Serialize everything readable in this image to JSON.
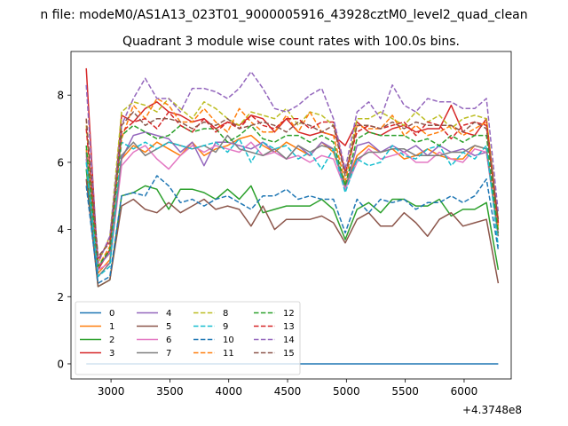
{
  "chart_data": {
    "type": "line",
    "suptitle": "n file: modeM0/AS1A13_023T01_9000005916_43928cztM0_level2_quad_clean",
    "title": "Quadrant 3 module wise count rates with 100.0s bins.",
    "xlabel": "",
    "ylabel": "",
    "x_offset_label": "+4.3748e8",
    "xlim": [
      2660,
      6400
    ],
    "ylim": [
      -0.45,
      9.3
    ],
    "xticks": [
      3000,
      3500,
      4000,
      4500,
      5000,
      5500,
      6000
    ],
    "xtick_labels": [
      "3000",
      "3500",
      "4000",
      "4500",
      "5000",
      "5500",
      "6000"
    ],
    "yticks": [
      0,
      2,
      4,
      6,
      8
    ],
    "ytick_labels": [
      "0",
      "2",
      "4",
      "6",
      "8"
    ],
    "grid": false,
    "legend_position": "lower-left",
    "legend_columns": 4,
    "x": [
      2790,
      2890,
      2990,
      3090,
      3190,
      3290,
      3390,
      3490,
      3590,
      3690,
      3790,
      3890,
      3990,
      4090,
      4190,
      4290,
      4390,
      4490,
      4590,
      4690,
      4790,
      4890,
      4990,
      5090,
      5190,
      5290,
      5390,
      5490,
      5590,
      5690,
      5790,
      5890,
      5990,
      6090,
      6190,
      6290
    ],
    "series": [
      {
        "name": "0",
        "color": "#1f77b4",
        "dash": "solid",
        "values": [
          0,
          0,
          0,
          0,
          0,
          0,
          0,
          0,
          0,
          0,
          0,
          0,
          0,
          0,
          0,
          0,
          0,
          0,
          0,
          0,
          0,
          0,
          0,
          0,
          0,
          0,
          0,
          0,
          0,
          0,
          0,
          0,
          0,
          0,
          0,
          0
        ]
      },
      {
        "name": "1",
        "color": "#ff7f0e",
        "dash": "solid",
        "values": [
          6.4,
          2.7,
          3.1,
          6.1,
          6.5,
          6.3,
          6.6,
          6.4,
          6.2,
          6.6,
          6.2,
          6.4,
          6.5,
          6.7,
          6.8,
          6.5,
          6.3,
          6.6,
          6.4,
          6.2,
          6.6,
          6.3,
          5.3,
          6.2,
          6.5,
          6.3,
          6.4,
          6.1,
          6.2,
          6.4,
          6.2,
          6.1,
          6.1,
          6.5,
          6.4,
          4.0
        ]
      },
      {
        "name": "2",
        "color": "#2ca02c",
        "dash": "solid",
        "values": [
          5.8,
          2.3,
          2.5,
          5.0,
          5.1,
          5.3,
          5.2,
          4.6,
          5.2,
          5.2,
          5.1,
          4.9,
          5.2,
          4.9,
          5.3,
          4.5,
          4.6,
          4.7,
          4.7,
          4.7,
          4.9,
          4.6,
          3.7,
          4.6,
          4.8,
          4.5,
          4.9,
          4.9,
          4.7,
          4.7,
          4.9,
          4.4,
          4.6,
          4.6,
          4.8,
          2.8
        ]
      },
      {
        "name": "3",
        "color": "#d62728",
        "dash": "solid",
        "values": [
          8.8,
          2.8,
          3.4,
          7.4,
          7.2,
          7.6,
          7.8,
          7.5,
          7.4,
          7.2,
          7.3,
          7.0,
          7.2,
          7.1,
          7.4,
          7.3,
          6.9,
          7.3,
          6.9,
          6.8,
          6.9,
          6.8,
          6.5,
          7.2,
          6.9,
          6.8,
          7.0,
          7.1,
          6.9,
          7.0,
          7.0,
          7.7,
          6.9,
          6.8,
          7.3,
          4.2
        ]
      },
      {
        "name": "4",
        "color": "#9467bd",
        "dash": "solid",
        "values": [
          6.1,
          2.9,
          3.3,
          6.1,
          6.8,
          6.9,
          6.8,
          6.7,
          6.3,
          6.6,
          5.9,
          6.6,
          6.6,
          6.5,
          6.4,
          6.6,
          6.3,
          6.1,
          6.5,
          6.2,
          6.6,
          6.4,
          5.2,
          6.5,
          6.6,
          6.3,
          6.5,
          6.3,
          6.5,
          6.2,
          6.5,
          6.3,
          6.4,
          6.2,
          6.3,
          3.9
        ]
      },
      {
        "name": "5",
        "color": "#8c564b",
        "dash": "solid",
        "values": [
          5.5,
          2.3,
          2.5,
          4.7,
          4.9,
          4.6,
          4.5,
          4.8,
          4.5,
          4.7,
          4.9,
          4.6,
          4.7,
          4.6,
          4.1,
          4.7,
          4.0,
          4.3,
          4.3,
          4.3,
          4.4,
          4.2,
          3.6,
          4.3,
          4.5,
          4.1,
          4.1,
          4.5,
          4.2,
          3.8,
          4.3,
          4.5,
          4.1,
          4.2,
          4.3,
          2.4
        ]
      },
      {
        "name": "6",
        "color": "#e377c2",
        "dash": "solid",
        "values": [
          6.2,
          2.8,
          3.0,
          5.9,
          6.3,
          6.5,
          6.1,
          5.8,
          6.2,
          6.5,
          6.3,
          6.5,
          6.4,
          6.3,
          6.6,
          6.2,
          6.3,
          6.1,
          6.2,
          6.0,
          6.2,
          6.1,
          5.2,
          6.0,
          6.4,
          6.1,
          6.2,
          6.3,
          6.0,
          6.0,
          6.3,
          6.1,
          6.0,
          6.4,
          6.3,
          3.8
        ]
      },
      {
        "name": "7",
        "color": "#7f7f7f",
        "dash": "solid",
        "values": [
          6.3,
          2.6,
          3.0,
          6.2,
          6.6,
          6.2,
          6.4,
          6.6,
          6.5,
          6.4,
          6.5,
          6.3,
          6.8,
          6.4,
          6.3,
          6.2,
          6.4,
          6.1,
          6.5,
          6.3,
          6.5,
          6.4,
          5.3,
          6.1,
          6.3,
          6.3,
          6.4,
          6.4,
          6.2,
          6.2,
          6.2,
          6.3,
          6.3,
          6.5,
          6.4,
          3.8
        ]
      },
      {
        "name": "8",
        "color": "#bcbd22",
        "dash": "dashed",
        "values": [
          7.1,
          3.0,
          3.8,
          7.5,
          7.8,
          7.7,
          7.5,
          7.9,
          7.6,
          7.3,
          7.8,
          7.6,
          7.3,
          7.1,
          7.5,
          7.4,
          7.3,
          7.6,
          7.1,
          7.5,
          7.4,
          7.1,
          5.6,
          7.3,
          7.3,
          7.5,
          7.3,
          7.1,
          7.5,
          7.2,
          7.4,
          7.0,
          7.3,
          7.4,
          7.3,
          4.3
        ]
      },
      {
        "name": "9",
        "color": "#17becf",
        "dash": "dashed",
        "values": [
          6.0,
          2.6,
          2.9,
          6.6,
          6.4,
          6.6,
          6.4,
          6.6,
          6.5,
          6.4,
          6.5,
          6.6,
          6.3,
          6.7,
          6.0,
          6.6,
          6.4,
          6.5,
          6.1,
          6.3,
          5.8,
          6.4,
          5.1,
          6.1,
          5.9,
          6.0,
          6.5,
          6.2,
          6.1,
          6.4,
          6.5,
          5.9,
          6.3,
          6.1,
          6.5,
          3.5
        ]
      },
      {
        "name": "10",
        "color": "#1f77b4",
        "dash": "dashed",
        "values": [
          5.3,
          2.4,
          2.6,
          5.0,
          5.1,
          5.0,
          5.6,
          5.3,
          4.8,
          4.9,
          4.7,
          4.9,
          5.0,
          4.8,
          4.6,
          5.0,
          5.0,
          5.2,
          4.9,
          5.0,
          4.9,
          4.9,
          3.9,
          4.9,
          4.5,
          4.9,
          4.8,
          4.9,
          4.6,
          4.8,
          4.8,
          5.0,
          4.8,
          5.0,
          5.5,
          3.4
        ]
      },
      {
        "name": "11",
        "color": "#ff7f0e",
        "dash": "dashed",
        "values": [
          7.3,
          2.9,
          3.5,
          6.7,
          7.7,
          7.3,
          7.9,
          7.7,
          7.2,
          7.2,
          7.6,
          7.2,
          6.9,
          7.6,
          7.2,
          6.9,
          6.9,
          7.4,
          6.9,
          7.5,
          6.9,
          6.8,
          5.4,
          7.1,
          7.0,
          7.0,
          7.4,
          6.8,
          7.1,
          6.8,
          6.9,
          7.1,
          6.8,
          7.0,
          7.2,
          4.1
        ]
      },
      {
        "name": "12",
        "color": "#2ca02c",
        "dash": "dashed",
        "values": [
          6.5,
          2.9,
          3.4,
          6.8,
          7.1,
          6.9,
          6.7,
          6.8,
          7.1,
          6.9,
          7.0,
          7.0,
          6.6,
          6.8,
          7.1,
          6.7,
          6.6,
          6.8,
          6.8,
          6.6,
          6.8,
          6.6,
          5.3,
          6.7,
          6.9,
          6.8,
          6.8,
          6.8,
          6.6,
          6.7,
          6.5,
          6.8,
          6.6,
          6.8,
          6.8,
          3.9
        ]
      },
      {
        "name": "13",
        "color": "#d62728",
        "dash": "dashed",
        "values": [
          7.0,
          3.1,
          3.7,
          6.9,
          7.2,
          7.3,
          7.0,
          7.5,
          7.1,
          6.9,
          7.3,
          6.9,
          7.2,
          7.0,
          7.4,
          7.1,
          7.0,
          7.3,
          7.3,
          7.0,
          7.2,
          7.2,
          5.7,
          6.9,
          7.1,
          7.0,
          7.1,
          7.2,
          6.8,
          7.2,
          7.1,
          6.7,
          7.1,
          7.2,
          7.1,
          4.2
        ]
      },
      {
        "name": "14",
        "color": "#9467bd",
        "dash": "dashed",
        "values": [
          8.3,
          3.0,
          3.8,
          7.1,
          7.9,
          8.5,
          7.9,
          7.9,
          7.5,
          8.2,
          8.2,
          8.1,
          7.9,
          8.2,
          8.7,
          8.2,
          7.6,
          7.5,
          7.7,
          8.0,
          8.2,
          7.3,
          5.8,
          7.5,
          7.8,
          7.3,
          8.3,
          7.7,
          7.5,
          7.9,
          7.8,
          7.8,
          7.6,
          7.6,
          7.9,
          4.5
        ]
      },
      {
        "name": "15",
        "color": "#8c564b",
        "dash": "dashed",
        "values": [
          7.3,
          3.2,
          3.6,
          7.1,
          7.5,
          7.1,
          7.3,
          7.3,
          7.2,
          7.0,
          7.2,
          7.1,
          7.3,
          7.0,
          7.1,
          7.2,
          7.1,
          6.9,
          7.2,
          7.1,
          6.9,
          7.1,
          5.6,
          7.1,
          7.1,
          7.0,
          7.2,
          7.0,
          7.2,
          7.1,
          7.1,
          7.1,
          6.9,
          7.2,
          7.0,
          4.3
        ]
      }
    ]
  }
}
